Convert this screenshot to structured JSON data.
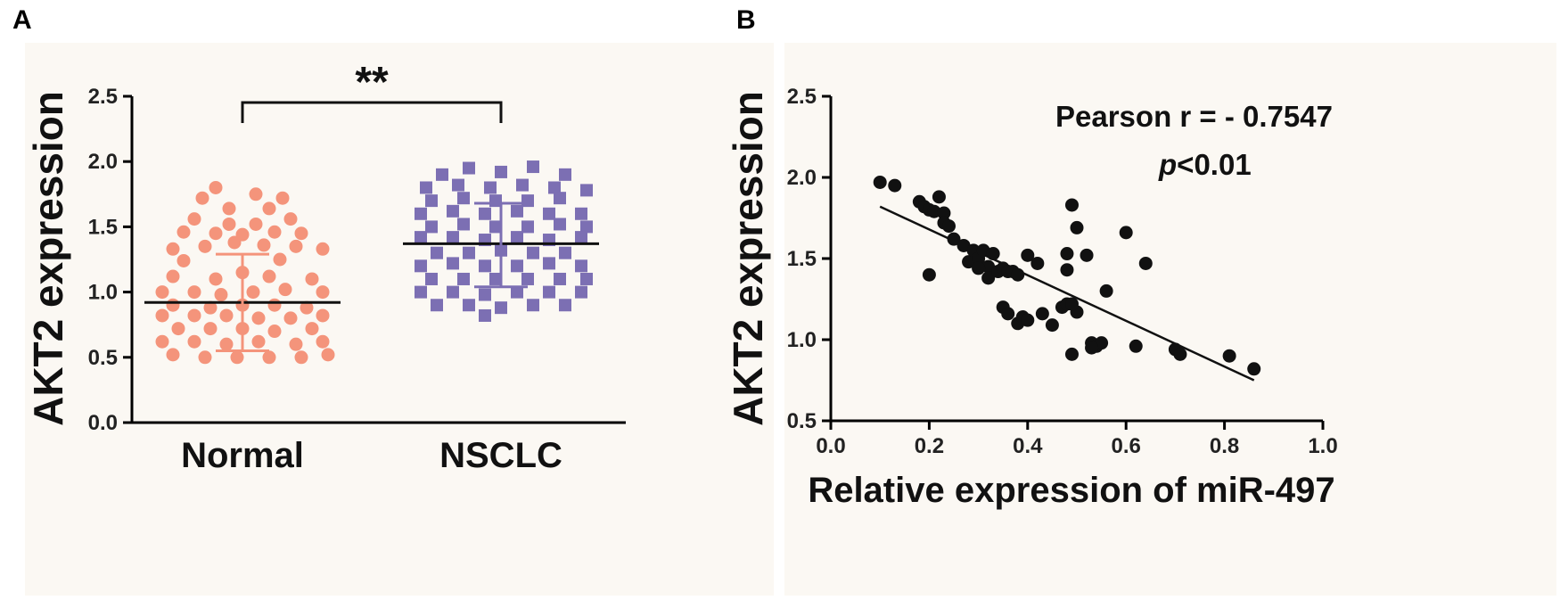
{
  "panels": {
    "a_label": "A",
    "b_label": "B"
  },
  "chart_data": [
    {
      "type": "scatter",
      "subtype": "column-dot-plot",
      "panel": "A",
      "ylabel": "AKT2 expression",
      "ylim": [
        0,
        2.5
      ],
      "yticks": [
        "0.0",
        "0.5",
        "1.0",
        "1.5",
        "2.0",
        "2.5"
      ],
      "categories": [
        "Normal",
        "NSCLC"
      ],
      "significance": "**",
      "colors": {
        "Normal": "#f4947b",
        "NSCLC": "#7c6fb3"
      },
      "series": [
        {
          "name": "Normal",
          "marker": "circle",
          "mean": 0.92,
          "sd_range": [
            0.55,
            1.29
          ],
          "points": [
            [
              -0.1,
              1.8
            ],
            [
              0.05,
              1.75
            ],
            [
              -0.15,
              1.72
            ],
            [
              0.15,
              1.72
            ],
            [
              0.1,
              1.64
            ],
            [
              -0.05,
              1.64
            ],
            [
              -0.18,
              1.56
            ],
            [
              0.18,
              1.56
            ],
            [
              -0.05,
              1.52
            ],
            [
              0.05,
              1.52
            ],
            [
              -0.22,
              1.46
            ],
            [
              -0.1,
              1.45
            ],
            [
              0.0,
              1.44
            ],
            [
              0.12,
              1.46
            ],
            [
              0.22,
              1.45
            ],
            [
              -0.26,
              1.33
            ],
            [
              -0.14,
              1.35
            ],
            [
              -0.03,
              1.38
            ],
            [
              0.08,
              1.36
            ],
            [
              0.2,
              1.35
            ],
            [
              0.3,
              1.33
            ],
            [
              -0.22,
              1.24
            ],
            [
              0.14,
              1.25
            ],
            [
              -0.26,
              1.12
            ],
            [
              -0.1,
              1.1
            ],
            [
              0.0,
              1.15
            ],
            [
              0.1,
              1.12
            ],
            [
              0.26,
              1.1
            ],
            [
              -0.3,
              1.0
            ],
            [
              -0.18,
              1.0
            ],
            [
              -0.08,
              0.98
            ],
            [
              0.04,
              1.0
            ],
            [
              0.16,
              1.02
            ],
            [
              0.3,
              1.0
            ],
            [
              -0.26,
              0.9
            ],
            [
              -0.12,
              0.88
            ],
            [
              0.0,
              0.9
            ],
            [
              0.12,
              0.9
            ],
            [
              0.24,
              0.88
            ],
            [
              -0.3,
              0.82
            ],
            [
              -0.18,
              0.82
            ],
            [
              -0.06,
              0.82
            ],
            [
              0.06,
              0.8
            ],
            [
              0.18,
              0.8
            ],
            [
              0.3,
              0.82
            ],
            [
              -0.24,
              0.72
            ],
            [
              -0.12,
              0.72
            ],
            [
              0.0,
              0.72
            ],
            [
              0.12,
              0.7
            ],
            [
              0.26,
              0.72
            ],
            [
              -0.3,
              0.62
            ],
            [
              -0.18,
              0.62
            ],
            [
              -0.06,
              0.6
            ],
            [
              0.06,
              0.62
            ],
            [
              0.2,
              0.6
            ],
            [
              0.3,
              0.62
            ],
            [
              -0.26,
              0.52
            ],
            [
              -0.14,
              0.5
            ],
            [
              -0.02,
              0.5
            ],
            [
              0.1,
              0.5
            ],
            [
              0.22,
              0.5
            ],
            [
              0.32,
              0.52
            ]
          ]
        },
        {
          "name": "NSCLC",
          "marker": "square",
          "mean": 1.37,
          "sd_range": [
            1.04,
            1.68
          ],
          "points": [
            [
              -0.12,
              1.95
            ],
            [
              0.0,
              1.92
            ],
            [
              0.12,
              1.96
            ],
            [
              -0.22,
              1.9
            ],
            [
              0.24,
              1.9
            ],
            [
              -0.28,
              1.8
            ],
            [
              -0.16,
              1.82
            ],
            [
              -0.04,
              1.8
            ],
            [
              0.08,
              1.82
            ],
            [
              0.2,
              1.8
            ],
            [
              0.32,
              1.78
            ],
            [
              -0.26,
              1.7
            ],
            [
              -0.14,
              1.72
            ],
            [
              -0.02,
              1.7
            ],
            [
              0.1,
              1.7
            ],
            [
              0.22,
              1.72
            ],
            [
              -0.3,
              1.6
            ],
            [
              -0.18,
              1.62
            ],
            [
              -0.06,
              1.6
            ],
            [
              0.06,
              1.62
            ],
            [
              0.18,
              1.6
            ],
            [
              0.3,
              1.6
            ],
            [
              -0.26,
              1.5
            ],
            [
              -0.14,
              1.52
            ],
            [
              -0.02,
              1.5
            ],
            [
              0.1,
              1.5
            ],
            [
              0.22,
              1.52
            ],
            [
              0.32,
              1.5
            ],
            [
              -0.3,
              1.42
            ],
            [
              -0.18,
              1.42
            ],
            [
              -0.06,
              1.4
            ],
            [
              0.06,
              1.42
            ],
            [
              0.18,
              1.4
            ],
            [
              0.3,
              1.42
            ],
            [
              -0.24,
              1.3
            ],
            [
              -0.12,
              1.3
            ],
            [
              0.0,
              1.32
            ],
            [
              0.12,
              1.3
            ],
            [
              0.24,
              1.3
            ],
            [
              -0.3,
              1.2
            ],
            [
              -0.18,
              1.22
            ],
            [
              -0.06,
              1.2
            ],
            [
              0.06,
              1.2
            ],
            [
              0.18,
              1.22
            ],
            [
              0.3,
              1.2
            ],
            [
              -0.26,
              1.1
            ],
            [
              -0.14,
              1.1
            ],
            [
              -0.02,
              1.1
            ],
            [
              0.1,
              1.1
            ],
            [
              0.22,
              1.1
            ],
            [
              0.32,
              1.1
            ],
            [
              -0.3,
              1.0
            ],
            [
              -0.18,
              1.0
            ],
            [
              -0.06,
              0.98
            ],
            [
              0.06,
              1.0
            ],
            [
              0.18,
              1.0
            ],
            [
              0.3,
              1.0
            ],
            [
              -0.24,
              0.9
            ],
            [
              -0.12,
              0.9
            ],
            [
              0.0,
              0.88
            ],
            [
              0.12,
              0.9
            ],
            [
              0.24,
              0.9
            ],
            [
              -0.06,
              0.82
            ]
          ]
        }
      ]
    },
    {
      "type": "scatter",
      "panel": "B",
      "xlabel": "Relative expression of miR-497",
      "ylabel": "AKT2 expression",
      "xlim": [
        0.0,
        1.0
      ],
      "ylim": [
        0.5,
        2.5
      ],
      "xticks": [
        "0.0",
        "0.2",
        "0.4",
        "0.6",
        "0.8",
        "1.0"
      ],
      "yticks": [
        "0.5",
        "1.0",
        "1.5",
        "2.0",
        "2.5"
      ],
      "annotation_r": "Pearson r = - 0.7547",
      "annotation_p_italic": "p",
      "annotation_p_rest": "<0.01",
      "point_color": "#111111",
      "regression_line": {
        "x": [
          0.1,
          0.86
        ],
        "y": [
          1.82,
          0.75
        ]
      },
      "x": [
        0.1,
        0.13,
        0.18,
        0.19,
        0.2,
        0.21,
        0.22,
        0.23,
        0.23,
        0.24,
        0.2,
        0.25,
        0.27,
        0.28,
        0.29,
        0.3,
        0.31,
        0.32,
        0.3,
        0.32,
        0.33,
        0.34,
        0.35,
        0.36,
        0.37,
        0.38,
        0.35,
        0.36,
        0.38,
        0.39,
        0.4,
        0.4,
        0.42,
        0.43,
        0.45,
        0.47,
        0.48,
        0.48,
        0.48,
        0.49,
        0.5,
        0.49,
        0.5,
        0.49,
        0.52,
        0.53,
        0.54,
        0.55,
        0.53,
        0.56,
        0.6,
        0.62,
        0.64,
        0.7,
        0.71,
        0.81,
        0.86
      ],
      "y": [
        1.97,
        1.95,
        1.85,
        1.82,
        1.8,
        1.79,
        1.88,
        1.78,
        1.72,
        1.7,
        1.4,
        1.62,
        1.58,
        1.48,
        1.55,
        1.5,
        1.55,
        1.45,
        1.44,
        1.38,
        1.53,
        1.42,
        1.44,
        1.42,
        1.42,
        1.4,
        1.2,
        1.16,
        1.1,
        1.14,
        1.12,
        1.52,
        1.47,
        1.16,
        1.09,
        1.2,
        1.22,
        1.53,
        1.43,
        0.91,
        1.17,
        1.83,
        1.69,
        1.22,
        1.52,
        0.98,
        0.96,
        0.98,
        0.95,
        1.3,
        1.66,
        0.96,
        1.47,
        0.94,
        0.91,
        0.9,
        0.82
      ]
    }
  ]
}
